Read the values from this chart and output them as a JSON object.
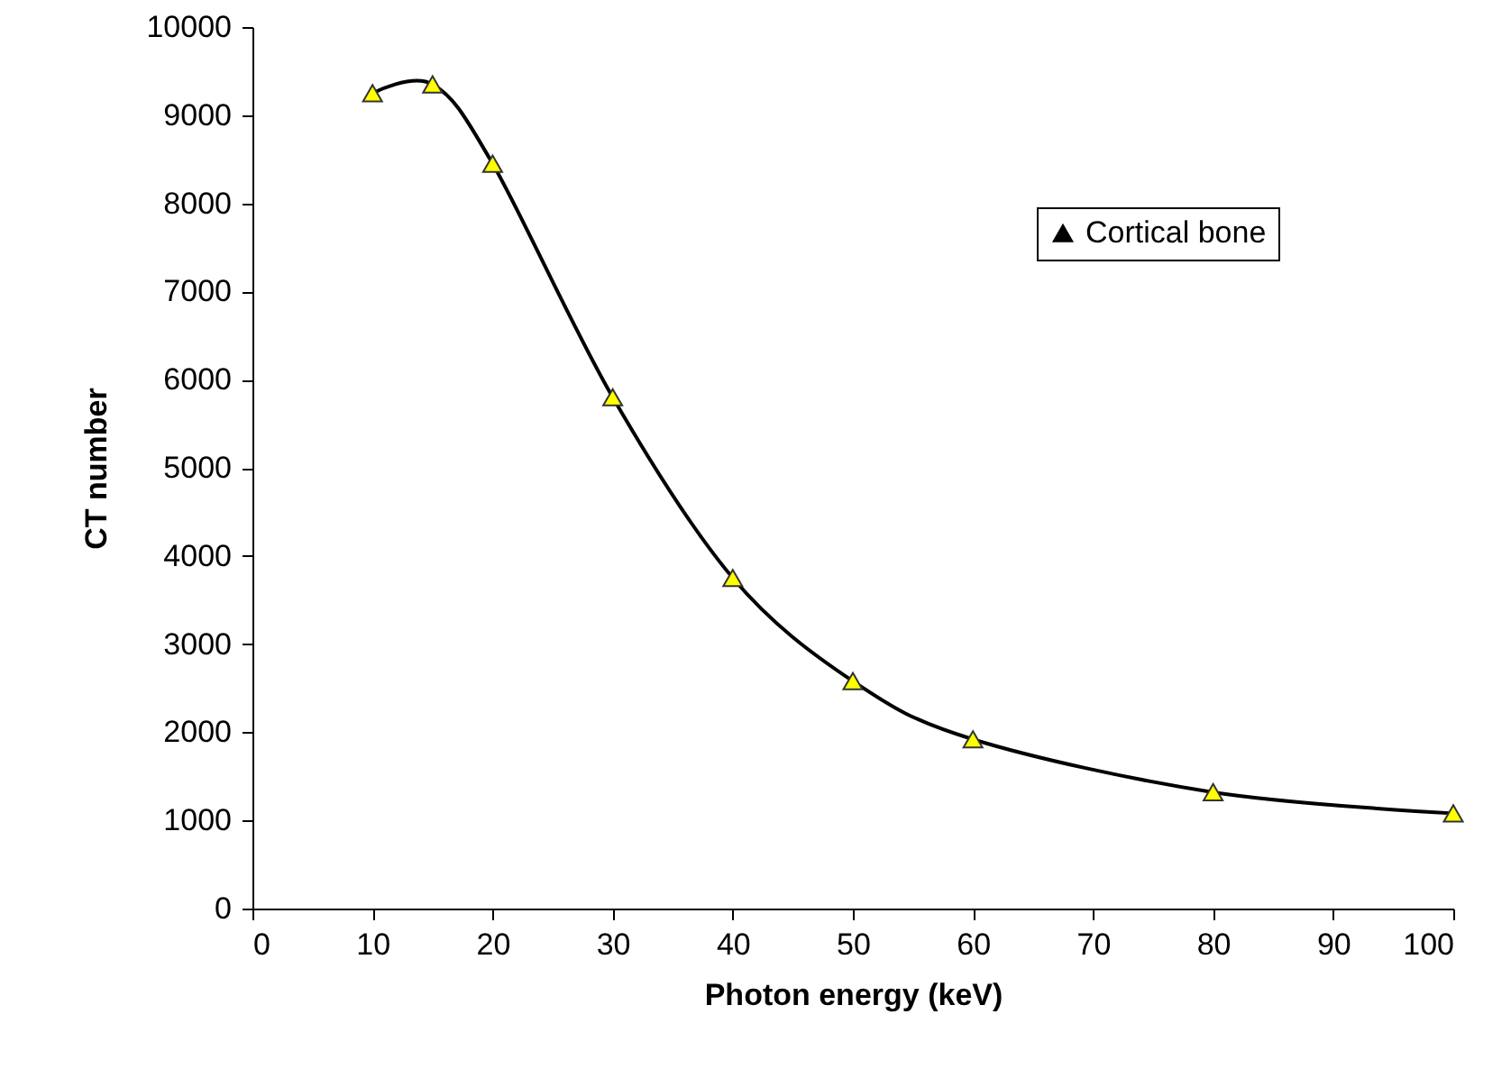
{
  "chart_data": {
    "type": "line",
    "xlabel": "Photon energy (keV)",
    "ylabel": "CT number",
    "x": [
      10,
      15,
      20,
      30,
      40,
      50,
      60,
      80,
      100
    ],
    "series": [
      {
        "name": "Cortical bone",
        "color": "#000000",
        "values": [
          9250,
          9350,
          8450,
          5800,
          3750,
          2580,
          1920,
          1320,
          1080
        ]
      }
    ],
    "xlim": [
      0,
      100
    ],
    "xticks": [
      0,
      10,
      20,
      30,
      40,
      50,
      60,
      70,
      80,
      90,
      100
    ],
    "ylim": [
      0,
      10000
    ],
    "yticks": [
      0,
      1000,
      2000,
      3000,
      4000,
      5000,
      6000,
      7000,
      8000,
      9000,
      10000
    ],
    "grid": false,
    "legend": "top right",
    "marker": "triangle",
    "line_style": "solid"
  }
}
